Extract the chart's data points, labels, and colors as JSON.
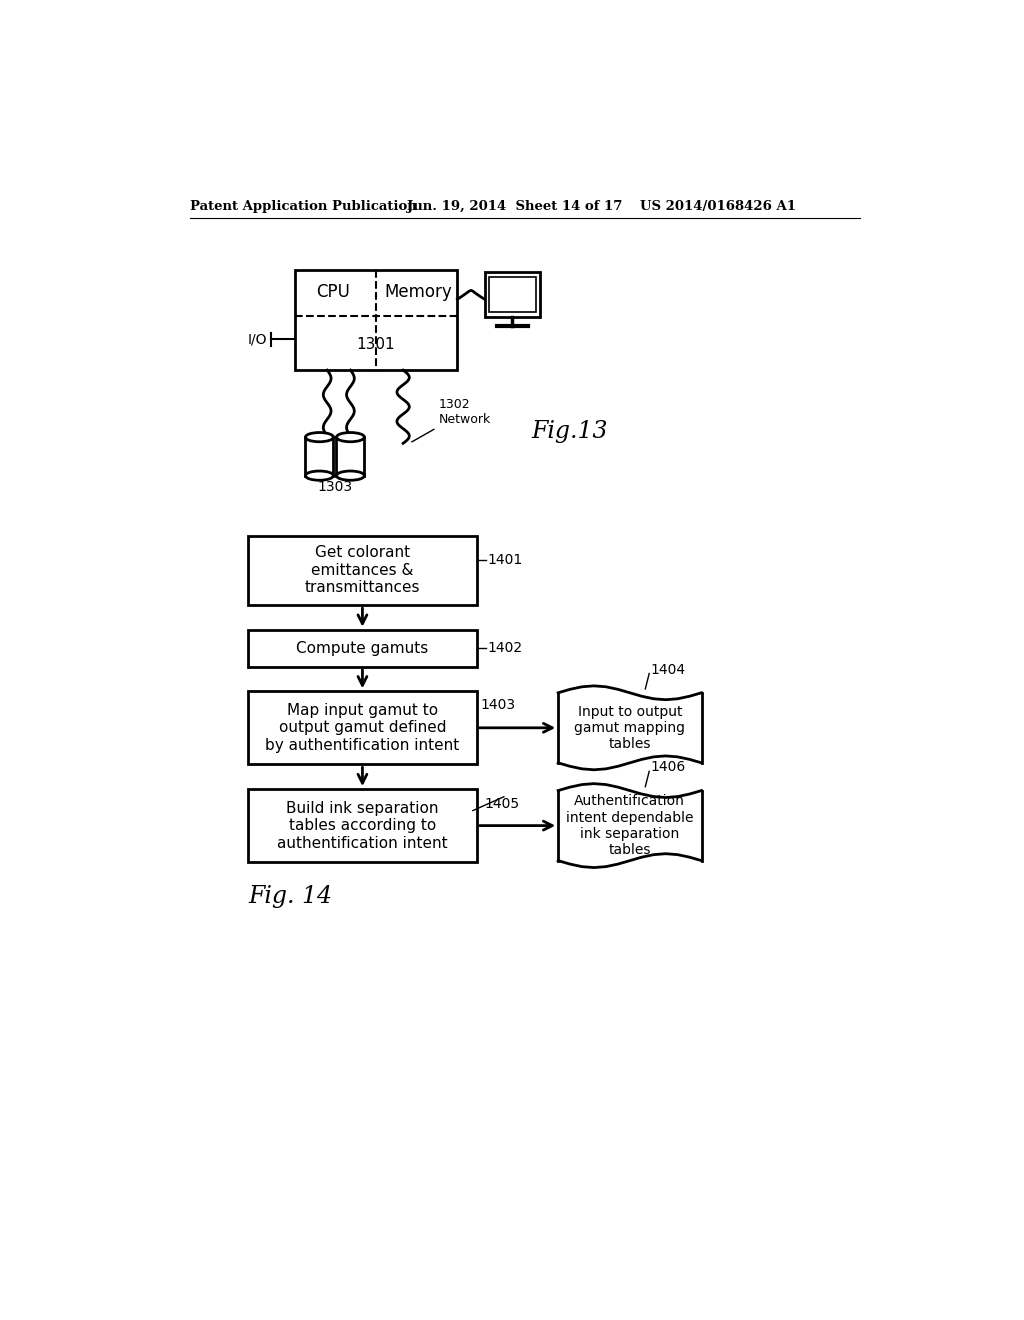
{
  "bg_color": "#ffffff",
  "header_left": "Patent Application Publication",
  "header_mid": "Jun. 19, 2014  Sheet 14 of 17",
  "header_right": "US 2014/0168426 A1",
  "fig13_label": "Fig.13",
  "fig14_label": "Fig. 14",
  "label_1301": "1301",
  "label_1302": "1302",
  "label_1302_sub": "Network",
  "label_1303": "1303",
  "label_IO": "I/O",
  "label_CPU": "CPU",
  "label_Memory": "Memory",
  "box1_label": "Get colorant\nemittances &\ntransmittances",
  "box2_label": "Compute gamuts",
  "box3_label": "Map input gamut to\noutput gamut defined\nby authentification intent",
  "box4_label": "Build ink separation\ntables according to\nauthentification intent",
  "wave1_label": "Input to output\ngamut mapping\ntables",
  "wave2_label": "Authentification\nintent dependable\nink separation\ntables",
  "ref_1401": "1401",
  "ref_1402": "1402",
  "ref_1403": "1403",
  "ref_1404": "1404",
  "ref_1405": "1405",
  "ref_1406": "1406"
}
